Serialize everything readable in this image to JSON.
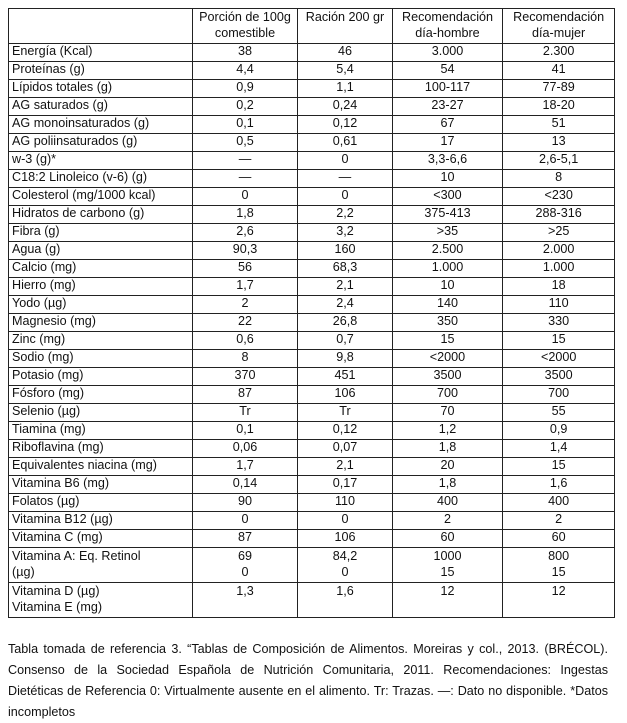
{
  "headers": [
    "",
    "Porción de 100g comestible",
    "Ración 200 gr",
    "Recomendación día-hombre",
    "Recomendación día-mujer"
  ],
  "rows": [
    [
      "Energía (Kcal)",
      "38",
      "46",
      "3.000",
      "2.300"
    ],
    [
      "Proteínas (g)",
      "4,4",
      "5,4",
      "54",
      "41"
    ],
    [
      "Lípidos totales (g)",
      "0,9",
      "1,1",
      "100-117",
      "77-89"
    ],
    [
      "AG saturados (g)",
      "0,2",
      "0,24",
      "23-27",
      "18-20"
    ],
    [
      "AG monoinsaturados (g)",
      "0,1",
      "0,12",
      "67",
      "51"
    ],
    [
      "AG poliinsaturados (g)",
      "0,5",
      "0,61",
      "17",
      "13"
    ],
    [
      "w-3 (g)*",
      "—",
      "0",
      "3,3-6,6",
      "2,6-5,1"
    ],
    [
      "C18:2 Linoleico (v-6) (g)",
      "—",
      "—",
      "10",
      "8"
    ],
    [
      "Colesterol (mg/1000 kcal)",
      "0",
      "0",
      "<300",
      "<230"
    ],
    [
      "Hidratos de carbono (g)",
      "1,8",
      "2,2",
      "375-413",
      "288-316"
    ],
    [
      "Fibra (g)",
      "2,6",
      "3,2",
      ">35",
      ">25"
    ],
    [
      "Agua (g)",
      "90,3",
      "160",
      "2.500",
      "2.000"
    ],
    [
      "Calcio (mg)",
      "56",
      "68,3",
      "1.000",
      "1.000"
    ],
    [
      "Hierro (mg)",
      "1,7",
      "2,1",
      "10",
      "18"
    ],
    [
      "Yodo (µg)",
      "2",
      "2,4",
      "140",
      "110"
    ],
    [
      "Magnesio (mg)",
      "22",
      "26,8",
      "350",
      "330"
    ],
    [
      "Zinc (mg)",
      "0,6",
      "0,7",
      "15",
      "15"
    ],
    [
      "Sodio (mg)",
      "8",
      "9,8",
      "<2000",
      "<2000"
    ],
    [
      "Potasio (mg)",
      "370",
      "451",
      "3500",
      "3500"
    ],
    [
      "Fósforo (mg)",
      "87",
      "106",
      "700",
      "700"
    ],
    [
      "Selenio (µg)",
      "Tr",
      "Tr",
      "70",
      "55"
    ],
    [
      "Tiamina (mg)",
      "0,1",
      "0,12",
      "1,2",
      "0,9"
    ],
    [
      "Riboflavina (mg)",
      "0,06",
      "0,07",
      "1,8",
      "1,4"
    ],
    [
      "Equivalentes niacina (mg)",
      "1,7",
      "2,1",
      "20",
      "15"
    ],
    [
      "Vitamina B6 (mg)",
      "0,14",
      "0,17",
      "1,8",
      "1,6"
    ],
    [
      "Folatos (µg)",
      "90",
      "110",
      "400",
      "400"
    ],
    [
      "Vitamina B12 (µg)",
      "0",
      "0",
      "2",
      "2"
    ],
    [
      "Vitamina C (mg)",
      "87",
      "106",
      "60",
      "60"
    ]
  ],
  "tall_rows": [
    {
      "label": [
        "Vitamina A: Eq. Retinol",
        "(µg)"
      ],
      "c1": [
        "69",
        "0"
      ],
      "c2": [
        "84,2",
        "0"
      ],
      "c3": [
        "1000",
        "15"
      ],
      "c4": [
        "800",
        "15"
      ]
    },
    {
      "label": [
        "Vitamina D (µg)",
        "Vitamina E (mg)"
      ],
      "c1": [
        "1,3",
        ""
      ],
      "c2": [
        "1,6",
        ""
      ],
      "c3": [
        "12",
        ""
      ],
      "c4": [
        "12",
        ""
      ]
    }
  ],
  "caption": "Tabla tomada de referencia 3. “Tablas de Composición de Alimentos. Moreiras y col., 2013. (BRÉCOL). Consenso de la Sociedad Española de Nutrición Comunitaria, 2011. Recomendaciones: Ingestas Dietéticas de Referencia  0: Virtualmente ausente en el alimento. Tr: Trazas. —: Dato no disponible. *Datos incompletos"
}
